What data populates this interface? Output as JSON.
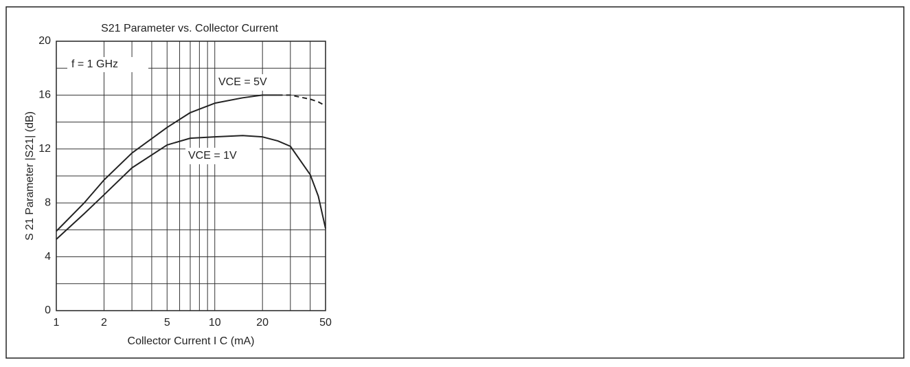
{
  "chart_data": {
    "type": "line",
    "title": "S21 Parameter vs. Collector Current",
    "x_label": "Collector Current  I C  (mA)",
    "y_label": "S 21  Parameter   |S21|   (dB)",
    "annotations": [
      "f = 1 GHz"
    ],
    "x_log": true,
    "grid": true,
    "xlim": [
      1,
      50
    ],
    "xticks": [
      1,
      2,
      5,
      10,
      20,
      50
    ],
    "x_minor_grid": [
      3,
      4,
      6,
      7,
      8,
      9,
      30,
      40
    ],
    "ylim": [
      0,
      20
    ],
    "yticks": [
      0,
      4,
      8,
      12,
      16,
      20
    ],
    "y_minor_grid": [
      2,
      6,
      10,
      14,
      18
    ],
    "x": [
      1,
      1.5,
      2,
      3,
      5,
      7,
      10,
      15,
      20,
      25,
      30,
      40,
      45,
      50
    ],
    "series": [
      {
        "name": "VCE = 5V",
        "color": "#222222",
        "dashed_from_index": 9,
        "values": [
          5.9,
          8.0,
          9.7,
          11.7,
          13.6,
          14.7,
          15.4,
          15.8,
          16.0,
          16.0,
          16.0,
          15.7,
          15.5,
          15.2
        ]
      },
      {
        "name": "VCE = 1V",
        "color": "#222222",
        "values": [
          5.3,
          7.2,
          8.6,
          10.6,
          12.3,
          12.8,
          12.9,
          13.0,
          12.9,
          12.6,
          12.2,
          10.1,
          8.5,
          6.1
        ]
      }
    ]
  }
}
